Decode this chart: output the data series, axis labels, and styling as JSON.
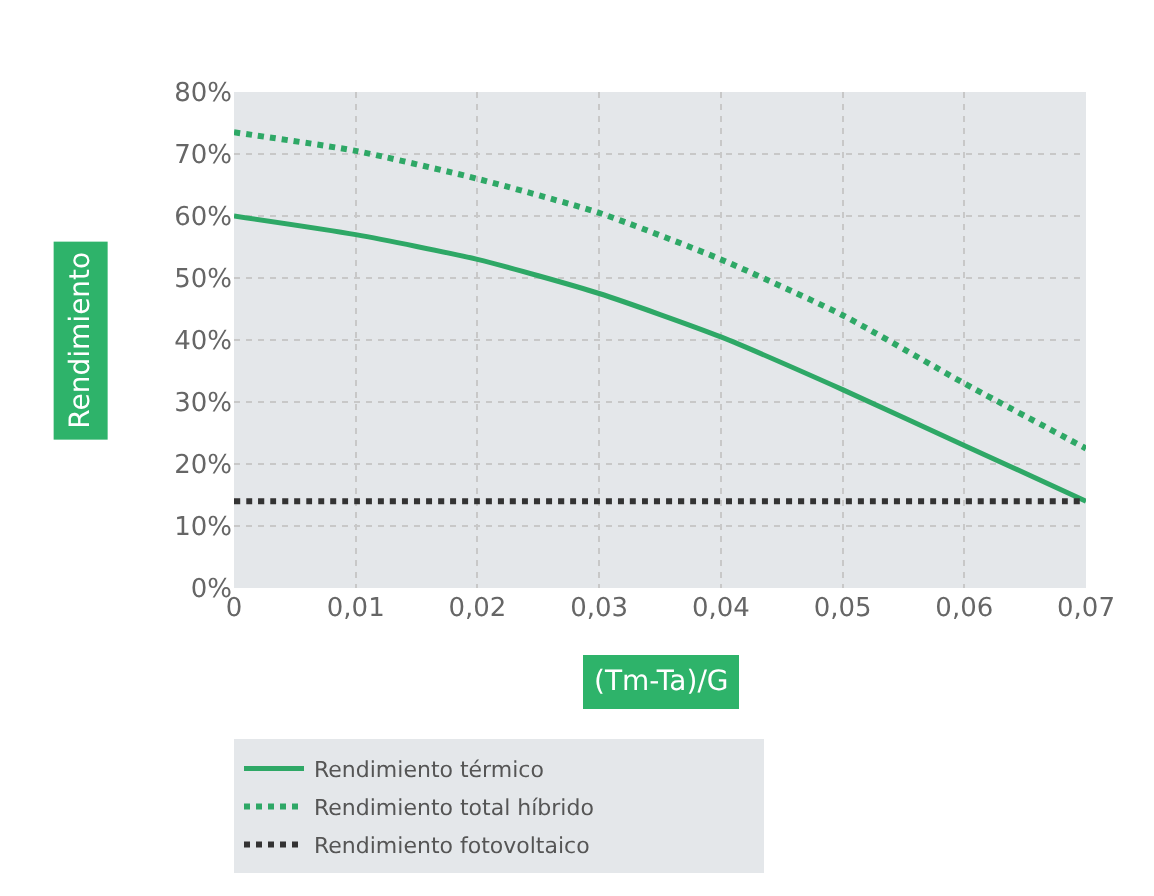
{
  "chart_data": {
    "type": "line",
    "xlabel": "(Tm-Ta)/G",
    "ylabel": "Rendimiento",
    "x": [
      0,
      0.01,
      0.02,
      0.03,
      0.04,
      0.05,
      0.06,
      0.07
    ],
    "series": [
      {
        "name": "Rendimiento térmico",
        "color": "#2ea866",
        "line_style": "solid",
        "values": [
          60,
          57,
          53,
          47.5,
          40.5,
          32,
          23,
          14
        ]
      },
      {
        "name": "Rendimiento total híbrido",
        "color": "#2ea866",
        "line_style": "dotted",
        "values": [
          73.5,
          70.5,
          66,
          60.5,
          53,
          44,
          33,
          22.5
        ]
      },
      {
        "name": "Rendimiento fotovoltaico",
        "color": "#333333",
        "line_style": "dotted",
        "values": [
          14,
          14,
          14,
          14,
          14,
          14,
          14,
          14
        ]
      }
    ],
    "xlim": [
      0,
      0.07
    ],
    "xticks": [
      0,
      {
        "value": 0.01,
        "label": "0,01"
      },
      {
        "value": 0.02,
        "label": "0,02"
      },
      {
        "value": 0.03,
        "label": "0,03"
      },
      {
        "value": 0.04,
        "label": "0,04"
      },
      {
        "value": 0.05,
        "label": "0,05"
      },
      {
        "value": 0.06,
        "label": "0,06"
      },
      {
        "value": 0.07,
        "label": "0,07"
      }
    ],
    "ylim": [
      0,
      80
    ],
    "yticks": [
      {
        "value": 0,
        "label": "0%"
      },
      {
        "value": 10,
        "label": "10%"
      },
      {
        "value": 20,
        "label": "20%"
      },
      {
        "value": 30,
        "label": "30%"
      },
      {
        "value": 40,
        "label": "40%"
      },
      {
        "value": 50,
        "label": "50%"
      },
      {
        "value": 60,
        "label": "60%"
      },
      {
        "value": 70,
        "label": "70%"
      },
      {
        "value": 80,
        "label": "80%"
      }
    ],
    "grid": true,
    "legend": "bottom",
    "marker": "none"
  }
}
